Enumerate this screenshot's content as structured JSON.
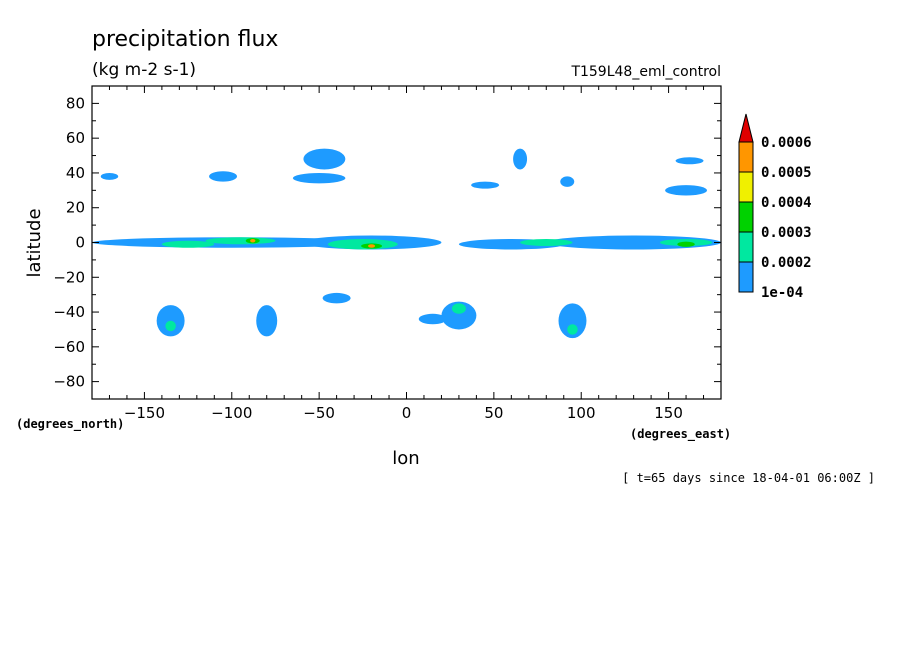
{
  "chart_data": {
    "type": "heatmap",
    "title": "precipitation flux",
    "subtitle": "(kg m-2 s-1)",
    "run_label": "T159L48_eml_control",
    "xlabel": "lon",
    "ylabel": "latitude",
    "x_units": "(degrees_east)",
    "y_units": "(degrees_north)",
    "xlim": [
      -180,
      180
    ],
    "ylim": [
      -90,
      90
    ],
    "xticks": [
      -150,
      -100,
      -50,
      0,
      50,
      100,
      150
    ],
    "yticks": [
      80,
      60,
      40,
      20,
      0,
      -20,
      -40,
      -60,
      -80
    ],
    "grid": false,
    "legend_position": "right",
    "time_note": "[ t=65 days since 18-04-01 06:00Z ]",
    "colorbar": {
      "levels": [
        "1e-04",
        "0.0002",
        "0.0003",
        "0.0004",
        "0.0005",
        "0.0006"
      ],
      "colors": [
        "#1e9bff",
        "#00e8a0",
        "#00d200",
        "#f0f000",
        "#ff9600",
        "#e00000"
      ]
    },
    "features": [
      {
        "lon": -100,
        "lat": 0,
        "level": 1,
        "halfwidth_lon": 80,
        "halfwidth_lat": 3
      },
      {
        "lon": -20,
        "lat": 0,
        "level": 1,
        "halfwidth_lon": 40,
        "halfwidth_lat": 4
      },
      {
        "lon": 60,
        "lat": -1,
        "level": 1,
        "halfwidth_lon": 30,
        "halfwidth_lat": 3
      },
      {
        "lon": 130,
        "lat": 0,
        "level": 1,
        "halfwidth_lon": 50,
        "halfwidth_lat": 4
      },
      {
        "lon": -125,
        "lat": -1,
        "level": 2,
        "halfwidth_lon": 15,
        "halfwidth_lat": 2
      },
      {
        "lon": -95,
        "lat": 1,
        "level": 2,
        "halfwidth_lon": 20,
        "halfwidth_lat": 2
      },
      {
        "lon": -25,
        "lat": -1,
        "level": 2,
        "halfwidth_lon": 20,
        "halfwidth_lat": 3
      },
      {
        "lon": 80,
        "lat": 0,
        "level": 2,
        "halfwidth_lon": 15,
        "halfwidth_lat": 2
      },
      {
        "lon": 160,
        "lat": 0,
        "level": 2,
        "halfwidth_lon": 15,
        "halfwidth_lat": 2
      },
      {
        "lon": -88,
        "lat": 1,
        "level": 3,
        "halfwidth_lon": 4,
        "halfwidth_lat": 1.5
      },
      {
        "lon": -20,
        "lat": -2,
        "level": 3,
        "halfwidth_lon": 6,
        "halfwidth_lat": 1.5
      },
      {
        "lon": 160,
        "lat": -1,
        "level": 3,
        "halfwidth_lon": 5,
        "halfwidth_lat": 1.5
      },
      {
        "lon": -20,
        "lat": -2,
        "level": 5,
        "halfwidth_lon": 2,
        "halfwidth_lat": 1
      },
      {
        "lon": -88,
        "lat": 1,
        "level": 5,
        "halfwidth_lon": 1.5,
        "halfwidth_lat": 1
      },
      {
        "lon": -47,
        "lat": 48,
        "level": 1,
        "halfwidth_lon": 12,
        "halfwidth_lat": 6
      },
      {
        "lon": -105,
        "lat": 38,
        "level": 1,
        "halfwidth_lon": 8,
        "halfwidth_lat": 3
      },
      {
        "lon": -50,
        "lat": 37,
        "level": 1,
        "halfwidth_lon": 15,
        "halfwidth_lat": 3
      },
      {
        "lon": -170,
        "lat": 38,
        "level": 1,
        "halfwidth_lon": 5,
        "halfwidth_lat": 2
      },
      {
        "lon": 65,
        "lat": 48,
        "level": 1,
        "halfwidth_lon": 4,
        "halfwidth_lat": 6
      },
      {
        "lon": 92,
        "lat": 35,
        "level": 1,
        "halfwidth_lon": 4,
        "halfwidth_lat": 3
      },
      {
        "lon": 45,
        "lat": 33,
        "level": 1,
        "halfwidth_lon": 8,
        "halfwidth_lat": 2
      },
      {
        "lon": 160,
        "lat": 30,
        "level": 1,
        "halfwidth_lon": 12,
        "halfwidth_lat": 3
      },
      {
        "lon": 162,
        "lat": 47,
        "level": 1,
        "halfwidth_lon": 8,
        "halfwidth_lat": 2
      },
      {
        "lon": -135,
        "lat": -45,
        "level": 1,
        "halfwidth_lon": 8,
        "halfwidth_lat": 9
      },
      {
        "lon": -80,
        "lat": -45,
        "level": 1,
        "halfwidth_lon": 6,
        "halfwidth_lat": 9
      },
      {
        "lon": -40,
        "lat": -32,
        "level": 1,
        "halfwidth_lon": 8,
        "halfwidth_lat": 3
      },
      {
        "lon": 30,
        "lat": -42,
        "level": 1,
        "halfwidth_lon": 10,
        "halfwidth_lat": 8
      },
      {
        "lon": 95,
        "lat": -45,
        "level": 1,
        "halfwidth_lon": 8,
        "halfwidth_lat": 10
      },
      {
        "lon": 15,
        "lat": -44,
        "level": 1,
        "halfwidth_lon": 8,
        "halfwidth_lat": 3
      },
      {
        "lon": -135,
        "lat": -48,
        "level": 2,
        "halfwidth_lon": 3,
        "halfwidth_lat": 3
      },
      {
        "lon": 30,
        "lat": -38,
        "level": 2,
        "halfwidth_lon": 4,
        "halfwidth_lat": 3
      },
      {
        "lon": 95,
        "lat": -50,
        "level": 2,
        "halfwidth_lon": 3,
        "halfwidth_lat": 3
      }
    ]
  }
}
